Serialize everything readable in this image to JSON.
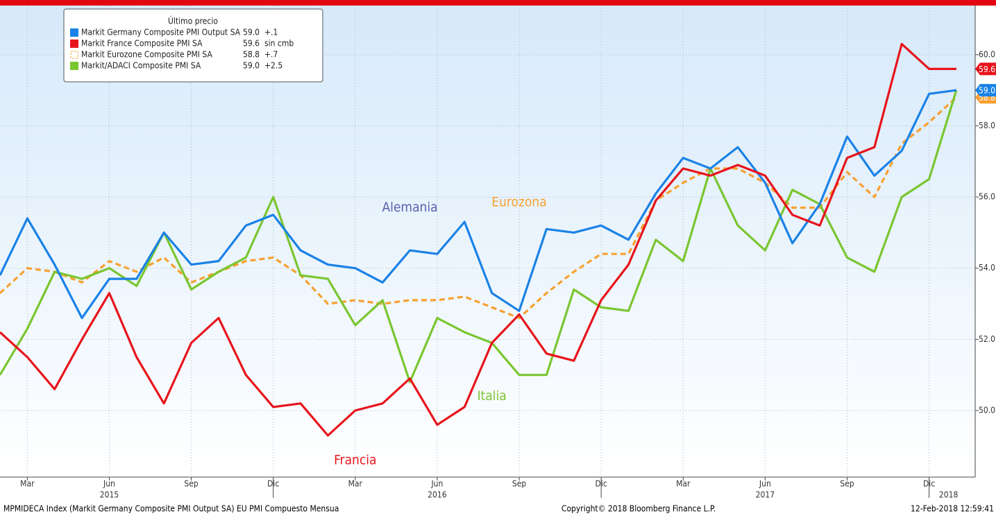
{
  "chart_data": {
    "type": "line",
    "categories": [
      null,
      "Mar",
      null,
      null,
      "Jun",
      null,
      null,
      "Sep",
      null,
      null,
      "Dic",
      null,
      null,
      "Mar",
      null,
      null,
      "Jun",
      null,
      null,
      "Sep",
      null,
      null,
      "Dic",
      null,
      null,
      "Mar",
      null,
      null,
      "Jun",
      null,
      null,
      "Sep",
      null,
      null,
      "Dic",
      null
    ],
    "year_labels": [
      "2015",
      "2016",
      "2017",
      "2018"
    ],
    "legend_title": "Último precio",
    "series": [
      {
        "name": "Markit Germany Composite PMI Output SA",
        "color": "#1a82e6",
        "last_label": "59.0",
        "change": "+.1",
        "values": [
          53.8,
          55.4,
          54.1,
          52.6,
          53.7,
          53.7,
          55.0,
          54.1,
          54.2,
          55.2,
          55.5,
          54.5,
          54.1,
          54.0,
          53.6,
          54.5,
          54.4,
          55.3,
          53.3,
          52.8,
          55.1,
          55.0,
          55.2,
          54.8,
          56.1,
          57.1,
          56.8,
          57.4,
          56.4,
          54.7,
          55.8,
          57.7,
          56.6,
          57.3,
          58.9,
          59.0
        ]
      },
      {
        "name": "Markit France Composite PMI SA",
        "color": "#e8141c",
        "last_label": "59.6",
        "change": "sin cmb",
        "values": [
          52.2,
          51.5,
          50.6,
          52.0,
          53.3,
          51.5,
          50.2,
          51.9,
          52.6,
          51.0,
          50.1,
          50.2,
          49.3,
          50.0,
          50.2,
          50.9,
          49.6,
          50.1,
          51.9,
          52.7,
          51.6,
          51.4,
          53.1,
          54.1,
          55.9,
          56.8,
          56.6,
          56.9,
          56.6,
          55.5,
          55.2,
          57.1,
          57.4,
          60.3,
          59.6,
          59.6
        ]
      },
      {
        "name": "Markit Eurozone Composite PMI SA",
        "color": "#f7a030",
        "dashed": true,
        "last_label": "58.8",
        "change": "+.7",
        "values": [
          53.3,
          54.0,
          53.9,
          53.6,
          54.2,
          53.9,
          54.3,
          53.6,
          53.9,
          54.2,
          54.3,
          53.8,
          53.0,
          53.1,
          53.0,
          53.1,
          53.1,
          53.2,
          52.9,
          52.6,
          53.3,
          53.9,
          54.4,
          54.4,
          55.9,
          56.4,
          56.8,
          56.8,
          56.4,
          55.7,
          55.7,
          56.7,
          56.0,
          57.5,
          58.1,
          58.8
        ]
      },
      {
        "name": "Markit/ADACI Composite PMI SA",
        "color": "#7ac631",
        "last_label": "59.0",
        "change": "+2.5",
        "values": [
          51.0,
          52.3,
          53.9,
          53.7,
          54.0,
          53.5,
          55.0,
          53.4,
          53.9,
          54.3,
          56.0,
          53.8,
          53.7,
          52.4,
          53.1,
          50.8,
          52.6,
          52.2,
          51.9,
          51.0,
          51.0,
          53.4,
          52.9,
          52.8,
          54.8,
          54.2,
          56.8,
          55.2,
          54.5,
          56.2,
          55.8,
          54.3,
          53.9,
          56.0,
          56.5,
          59.0
        ]
      }
    ],
    "annotations": [
      {
        "text": "Alemania",
        "color": "#5a5fb0",
        "category_index": 15,
        "y": 55.7
      },
      {
        "text": "Eurozona",
        "color": "#f7a030",
        "category_index": 19,
        "y": 55.85
      },
      {
        "text": "Italia",
        "color": "#7ac631",
        "category_index": 18,
        "y": 50.4
      },
      {
        "text": "Francia",
        "color": "#e8141c",
        "category_index": 13,
        "y": 48.6
      }
    ],
    "ylim": [
      48.13,
      61.38
    ],
    "yticks": [
      {
        "value": 50,
        "label": "50.0"
      },
      {
        "value": 52,
        "label": "52.0"
      },
      {
        "value": 54,
        "label": "54.0"
      },
      {
        "value": 56,
        "label": "56.0"
      },
      {
        "value": 58,
        "label": "58.0"
      },
      {
        "value": 60,
        "label": "60.0"
      }
    ],
    "grid": true,
    "footer_left": "MPMIDECA Index (Markit Germany Composite PMI Output SA) EU PMI Compuesto  Mensua",
    "footer_center": "Copyright© 2018 Bloomberg Finance L.P.",
    "footer_right": "12-Feb-2018 12:59:41"
  }
}
